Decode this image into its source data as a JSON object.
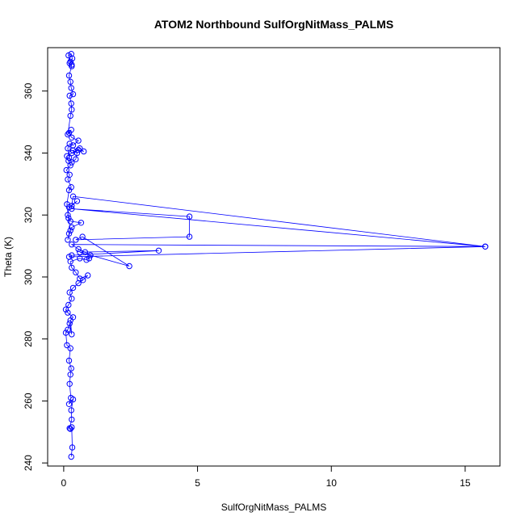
{
  "chart_data": {
    "type": "line",
    "title": "ATOM2 Northbound SulfOrgNitMass_PALMS",
    "xlabel": "SulfOrgNitMass_PALMS",
    "ylabel": "Theta (K)",
    "xlim": [
      -0.6,
      16.3
    ],
    "ylim": [
      239,
      374
    ],
    "xticks": [
      0,
      5,
      10,
      15
    ],
    "yticks": [
      240,
      260,
      280,
      300,
      320,
      340,
      360
    ],
    "grid": false,
    "legend": "none",
    "series_color": "#0000ff",
    "marker": "open-circle",
    "series": [
      {
        "points": [
          [
            0.28,
            242.0
          ],
          [
            0.32,
            245.0
          ],
          [
            0.3,
            251.5
          ],
          [
            0.25,
            251.0
          ],
          [
            0.22,
            251.2
          ],
          [
            0.3,
            254.0
          ],
          [
            0.28,
            257.0
          ],
          [
            0.35,
            260.5
          ],
          [
            0.2,
            259.0
          ],
          [
            0.27,
            261.0
          ],
          [
            0.22,
            265.5
          ],
          [
            0.25,
            268.5
          ],
          [
            0.28,
            270.5
          ],
          [
            0.2,
            273.0
          ],
          [
            0.25,
            277.0
          ],
          [
            0.12,
            278.0
          ],
          [
            0.08,
            282.0
          ],
          [
            0.15,
            283.0
          ],
          [
            0.22,
            285.0
          ],
          [
            0.3,
            281.5
          ],
          [
            0.25,
            286.0
          ],
          [
            0.35,
            287.0
          ],
          [
            0.15,
            288.5
          ],
          [
            0.08,
            289.5
          ],
          [
            0.18,
            291.0
          ],
          [
            0.3,
            293.0
          ],
          [
            0.22,
            295.0
          ],
          [
            0.35,
            296.5
          ],
          [
            0.55,
            298.0
          ],
          [
            0.72,
            299.0
          ],
          [
            0.9,
            300.5
          ],
          [
            0.6,
            299.5
          ],
          [
            0.45,
            301.5
          ],
          [
            0.3,
            303.0
          ],
          [
            0.25,
            305.0
          ],
          [
            0.6,
            306.0
          ],
          [
            0.85,
            305.5
          ],
          [
            0.95,
            306.0
          ],
          [
            1.0,
            307.0
          ],
          [
            0.8,
            308.0
          ],
          [
            0.55,
            309.0
          ],
          [
            0.3,
            310.5
          ],
          [
            15.75,
            309.8
          ],
          [
            0.2,
            306.5
          ],
          [
            0.3,
            307.0
          ],
          [
            3.55,
            308.5
          ],
          [
            0.6,
            308.0
          ],
          [
            2.45,
            303.5
          ],
          [
            0.7,
            313.0
          ],
          [
            0.45,
            312.0
          ],
          [
            4.7,
            313.0
          ],
          [
            4.7,
            319.5
          ],
          [
            0.3,
            322.0
          ],
          [
            15.75,
            309.8
          ],
          [
            0.35,
            326.0
          ],
          [
            0.3,
            323.0
          ],
          [
            0.5,
            324.5
          ],
          [
            0.2,
            322.5
          ],
          [
            0.15,
            320.0
          ],
          [
            0.25,
            318.0
          ],
          [
            0.65,
            317.5
          ],
          [
            0.3,
            316.0
          ],
          [
            0.2,
            314.0
          ],
          [
            0.15,
            312.0
          ],
          [
            0.25,
            315.0
          ],
          [
            0.18,
            319.0
          ],
          [
            0.12,
            323.5
          ],
          [
            0.2,
            328.0
          ],
          [
            0.28,
            329.0
          ],
          [
            0.15,
            331.5
          ],
          [
            0.22,
            333.0
          ],
          [
            0.1,
            334.5
          ],
          [
            0.25,
            336.0
          ],
          [
            0.18,
            337.5
          ],
          [
            0.12,
            339.0
          ],
          [
            0.3,
            340.0
          ],
          [
            0.55,
            341.0
          ],
          [
            0.75,
            340.5
          ],
          [
            0.6,
            341.5
          ],
          [
            0.35,
            340.8
          ],
          [
            0.5,
            340.0
          ],
          [
            0.45,
            338.0
          ],
          [
            0.3,
            337.0
          ],
          [
            0.2,
            338.5
          ],
          [
            0.15,
            341.5
          ],
          [
            0.22,
            343.0
          ],
          [
            0.35,
            342.5
          ],
          [
            0.55,
            344.0
          ],
          [
            0.3,
            345.0
          ],
          [
            0.2,
            346.5
          ],
          [
            0.28,
            347.5
          ],
          [
            0.15,
            346.0
          ],
          [
            0.25,
            352.0
          ],
          [
            0.3,
            354.0
          ],
          [
            0.28,
            356.0
          ],
          [
            0.22,
            358.5
          ],
          [
            0.35,
            359.0
          ],
          [
            0.28,
            361.0
          ],
          [
            0.25,
            363.0
          ],
          [
            0.2,
            365.0
          ],
          [
            0.3,
            368.0
          ],
          [
            0.22,
            369.0
          ],
          [
            0.18,
            371.5
          ],
          [
            0.28,
            372.0
          ],
          [
            0.32,
            370.5
          ],
          [
            0.25,
            369.5
          ],
          [
            0.3,
            368.5
          ]
        ]
      }
    ]
  }
}
